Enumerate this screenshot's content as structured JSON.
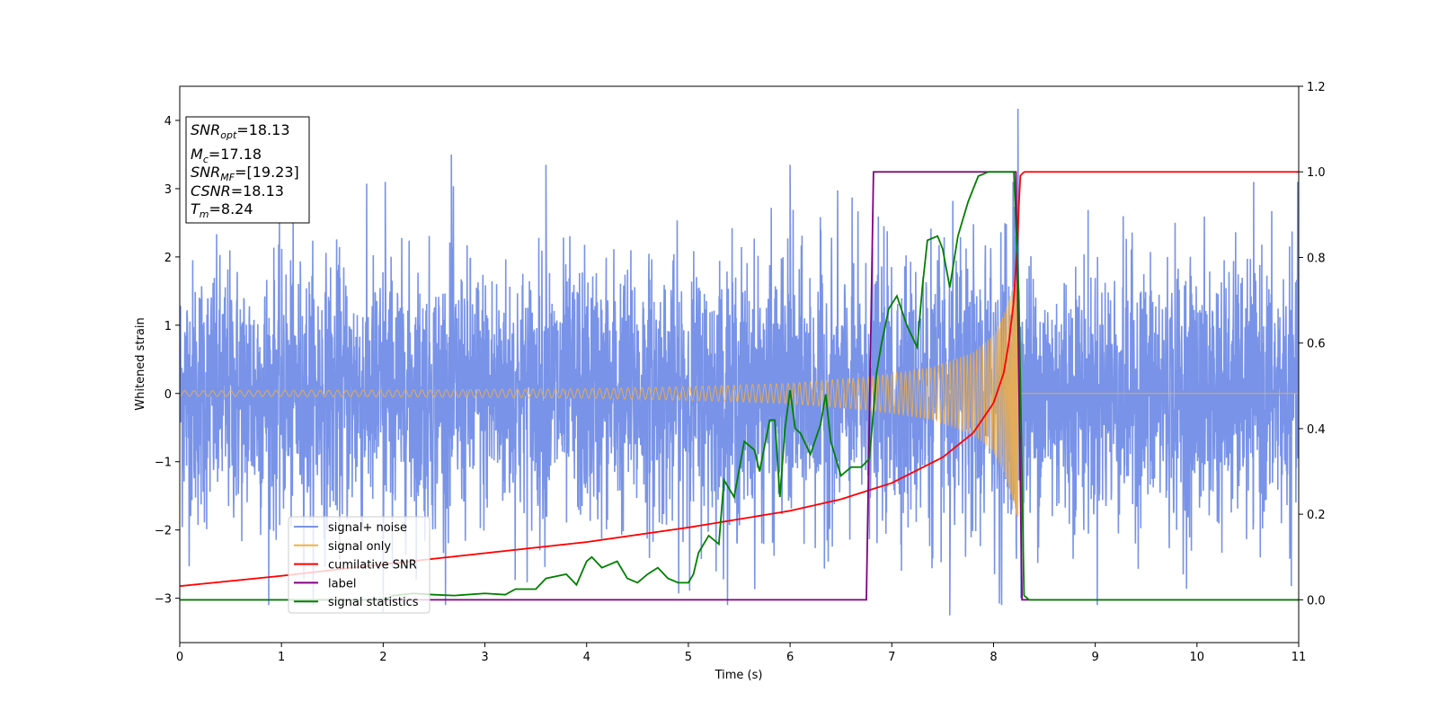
{
  "chart_data": {
    "type": "line",
    "xlabel": "Time (s)",
    "ylabel": "Whitened strain",
    "xlim": [
      0,
      11
    ],
    "ylim": [
      -3.65,
      4.5
    ],
    "y2lim": [
      -0.1,
      1.2
    ],
    "xticks": [
      0,
      1,
      2,
      3,
      4,
      5,
      6,
      7,
      8,
      9,
      10,
      11
    ],
    "yticks": [
      -3,
      -2,
      -1,
      0,
      1,
      2,
      3,
      4
    ],
    "y2ticks": [
      "0.0",
      "0.2",
      "0.4",
      "0.6",
      "0.8",
      "1.0",
      "1.2"
    ],
    "info_box": [
      {
        "base": "SNR",
        "sub": "opt",
        "rest": "=18.13"
      },
      {
        "base": "M",
        "sub": "c",
        "rest": "=17.18"
      },
      {
        "base": "SNR",
        "sub": "MF",
        "rest": "=[19.23]"
      },
      {
        "base": "CSNR",
        "sub": "",
        "rest": "=18.13"
      },
      {
        "base": "T",
        "sub": "m",
        "rest": "=8.24"
      }
    ],
    "legend_position": "lower-left",
    "series": [
      {
        "name": "signal+ noise",
        "axis": "left",
        "color": "#7893e8",
        "description_values": {
          "noise_std": 1.0,
          "merger_time": 8.24
        },
        "peaks": [
          [
            2.02,
            3.1
          ],
          [
            2.67,
            3.5
          ],
          [
            3.6,
            3.35
          ],
          [
            6.0,
            3.35
          ],
          [
            8.24,
            4.17
          ],
          [
            7.57,
            -3.25
          ],
          [
            2.0,
            -3.2
          ],
          [
            8.27,
            -3.0
          ]
        ]
      },
      {
        "name": "signal only",
        "axis": "left",
        "color": "#f5b041",
        "envelope": [
          [
            0,
            0.04
          ],
          [
            2,
            0.05
          ],
          [
            4,
            0.07
          ],
          [
            5,
            0.1
          ],
          [
            6,
            0.15
          ],
          [
            6.8,
            0.25
          ],
          [
            7.4,
            0.38
          ],
          [
            7.8,
            0.6
          ],
          [
            8.0,
            0.85
          ],
          [
            8.1,
            1.15
          ],
          [
            8.2,
            1.6
          ],
          [
            8.24,
            1.9
          ],
          [
            8.26,
            0.0
          ],
          [
            11,
            0.0
          ]
        ]
      },
      {
        "name": "cumilative SNR",
        "axis": "right",
        "color": "#ff0000",
        "points": [
          [
            0,
            0.032
          ],
          [
            1,
            0.056
          ],
          [
            2,
            0.083
          ],
          [
            3,
            0.109
          ],
          [
            4,
            0.135
          ],
          [
            5,
            0.169
          ],
          [
            6,
            0.208
          ],
          [
            6.5,
            0.235
          ],
          [
            7,
            0.273
          ],
          [
            7.5,
            0.333
          ],
          [
            7.8,
            0.39
          ],
          [
            8.0,
            0.46
          ],
          [
            8.1,
            0.53
          ],
          [
            8.15,
            0.6
          ],
          [
            8.2,
            0.7
          ],
          [
            8.24,
            0.86
          ],
          [
            8.26,
            0.99
          ],
          [
            8.3,
            1.0
          ],
          [
            11,
            1.0
          ]
        ]
      },
      {
        "name": "label",
        "axis": "right",
        "color": "#800080",
        "points": [
          [
            0,
            0.0
          ],
          [
            6.75,
            0.0
          ],
          [
            6.82,
            1.0
          ],
          [
            8.22,
            1.0
          ],
          [
            8.28,
            0.0
          ],
          [
            11,
            0.0
          ]
        ]
      },
      {
        "name": "signal statistics",
        "axis": "right",
        "color": "#008000",
        "points": [
          [
            0,
            0.0
          ],
          [
            2.0,
            0.0
          ],
          [
            2.1,
            0.01
          ],
          [
            2.3,
            0.015
          ],
          [
            2.5,
            0.012
          ],
          [
            2.7,
            0.01
          ],
          [
            3.0,
            0.015
          ],
          [
            3.2,
            0.012
          ],
          [
            3.3,
            0.025
          ],
          [
            3.5,
            0.025
          ],
          [
            3.6,
            0.05
          ],
          [
            3.8,
            0.06
          ],
          [
            3.9,
            0.035
          ],
          [
            4.0,
            0.09
          ],
          [
            4.05,
            0.1
          ],
          [
            4.15,
            0.075
          ],
          [
            4.3,
            0.09
          ],
          [
            4.4,
            0.05
          ],
          [
            4.5,
            0.04
          ],
          [
            4.6,
            0.06
          ],
          [
            4.7,
            0.075
          ],
          [
            4.8,
            0.05
          ],
          [
            4.9,
            0.04
          ],
          [
            5.0,
            0.04
          ],
          [
            5.05,
            0.06
          ],
          [
            5.1,
            0.11
          ],
          [
            5.2,
            0.15
          ],
          [
            5.3,
            0.13
          ],
          [
            5.35,
            0.28
          ],
          [
            5.45,
            0.24
          ],
          [
            5.55,
            0.37
          ],
          [
            5.65,
            0.35
          ],
          [
            5.7,
            0.3
          ],
          [
            5.8,
            0.42
          ],
          [
            5.85,
            0.42
          ],
          [
            5.9,
            0.24
          ],
          [
            5.95,
            0.4
          ],
          [
            6.0,
            0.49
          ],
          [
            6.05,
            0.4
          ],
          [
            6.1,
            0.39
          ],
          [
            6.2,
            0.34
          ],
          [
            6.3,
            0.41
          ],
          [
            6.35,
            0.48
          ],
          [
            6.4,
            0.37
          ],
          [
            6.5,
            0.29
          ],
          [
            6.6,
            0.31
          ],
          [
            6.7,
            0.31
          ],
          [
            6.78,
            0.33
          ],
          [
            6.85,
            0.53
          ],
          [
            6.9,
            0.6
          ],
          [
            6.97,
            0.68
          ],
          [
            7.05,
            0.71
          ],
          [
            7.15,
            0.64
          ],
          [
            7.25,
            0.59
          ],
          [
            7.3,
            0.73
          ],
          [
            7.35,
            0.84
          ],
          [
            7.45,
            0.85
          ],
          [
            7.5,
            0.82
          ],
          [
            7.57,
            0.73
          ],
          [
            7.65,
            0.85
          ],
          [
            7.75,
            0.93
          ],
          [
            7.85,
            0.99
          ],
          [
            7.95,
            1.0
          ],
          [
            8.15,
            1.0
          ],
          [
            8.2,
            1.0
          ],
          [
            8.25,
            0.7
          ],
          [
            8.3,
            0.01
          ],
          [
            8.35,
            0.0
          ],
          [
            11,
            0.0
          ]
        ]
      }
    ]
  }
}
